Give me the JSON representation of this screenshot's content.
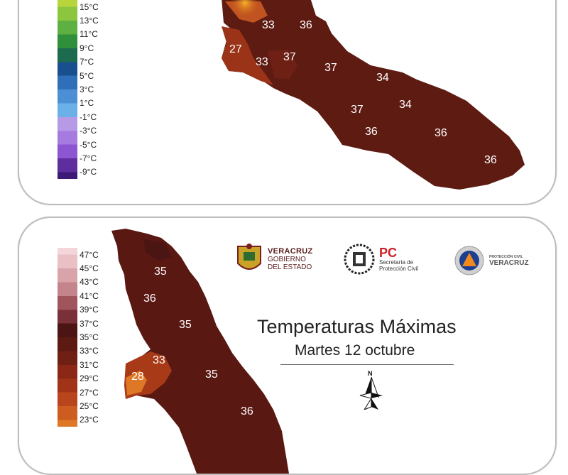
{
  "top_panel": {
    "legend_labels": [
      "15°C",
      "13°C",
      "11°C",
      "9°C",
      "7°C",
      "5°C",
      "3°C",
      "1°C",
      "-1°C",
      "-3°C",
      "-5°C",
      "-7°C",
      "-9°C"
    ],
    "legend_colors": [
      "#b8d63c",
      "#8cc63f",
      "#5fb043",
      "#2f8f3a",
      "#1c6b4e",
      "#1a4f8f",
      "#2f6fba",
      "#4d8fd4",
      "#6cb0ea",
      "#b69ae6",
      "#a57bdf",
      "#8c55d1",
      "#5e2e9e",
      "#3d1a78"
    ],
    "map_labels": [
      "33",
      "36",
      "27",
      "33",
      "37",
      "37",
      "34",
      "37",
      "34",
      "36",
      "36",
      "36"
    ]
  },
  "bottom_panel": {
    "legend_labels": [
      "47°C",
      "45°C",
      "43°C",
      "41°C",
      "39°C",
      "37°C",
      "35°C",
      "33°C",
      "31°C",
      "29°C",
      "27°C",
      "25°C",
      "23°C"
    ],
    "legend_colors": [
      "#f4d6da",
      "#e9c0c4",
      "#d8a4aa",
      "#c4848b",
      "#a0555d",
      "#7a3038",
      "#4a1512",
      "#5c1a13",
      "#701f14",
      "#8a2716",
      "#a03318",
      "#b8451c",
      "#cc5c20",
      "#de7826"
    ],
    "map_labels": [
      "35",
      "36",
      "35",
      "33",
      "28",
      "35",
      "36"
    ],
    "title": "Temperaturas Máximas",
    "subtitle": "Martes 12 octubre",
    "north_label": "N",
    "logos": {
      "veracruz_main": "VERACRUZ",
      "veracruz_sub1": "GOBIERNO",
      "veracruz_sub2": "DEL ESTADO",
      "pc_mark": "PC",
      "pc_sub1": "Secretaría de",
      "pc_sub2": "Protección Civil",
      "pcv_small": "PROTECCIÓN CIVIL",
      "pcv_main": "VERACRUZ"
    }
  }
}
